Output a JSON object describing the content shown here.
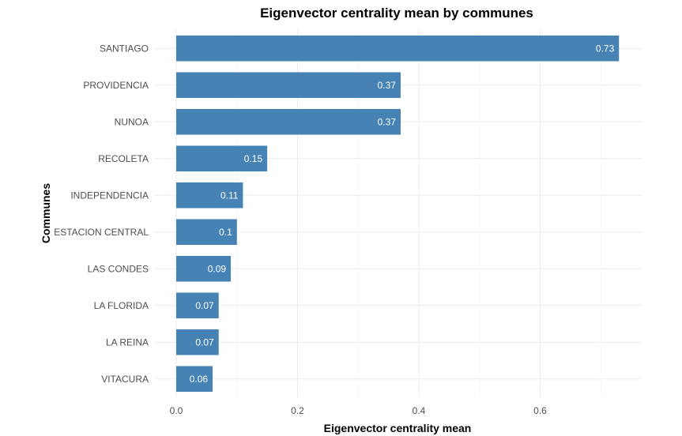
{
  "chart_data": {
    "type": "bar",
    "orientation": "horizontal",
    "title": "Eigenvector centrality mean by communes",
    "xlabel": "Eigenvector centrality mean",
    "ylabel": "Communes",
    "categories": [
      "SANTIAGO",
      "PROVIDENCIA",
      "NUNOA",
      "RECOLETA",
      "INDEPENDENCIA",
      "ESTACION CENTRAL",
      "LAS CONDES",
      "LA FLORIDA",
      "LA REINA",
      "VITACURA"
    ],
    "values": [
      0.73,
      0.37,
      0.37,
      0.15,
      0.11,
      0.1,
      0.09,
      0.07,
      0.07,
      0.06
    ],
    "labels": [
      "0.73",
      "0.37",
      "0.37",
      "0.15",
      "0.11",
      "0.1",
      "0.09",
      "0.07",
      "0.07",
      "0.06"
    ],
    "xlim": [
      0,
      0.765
    ],
    "xticks": [
      0,
      0.2,
      0.4,
      0.6
    ],
    "xtick_labels": [
      "0.0",
      "0.2",
      "0.4",
      "0.6"
    ],
    "grid": true,
    "bar_color": "#4682b4",
    "label_color": "#ffffff"
  }
}
